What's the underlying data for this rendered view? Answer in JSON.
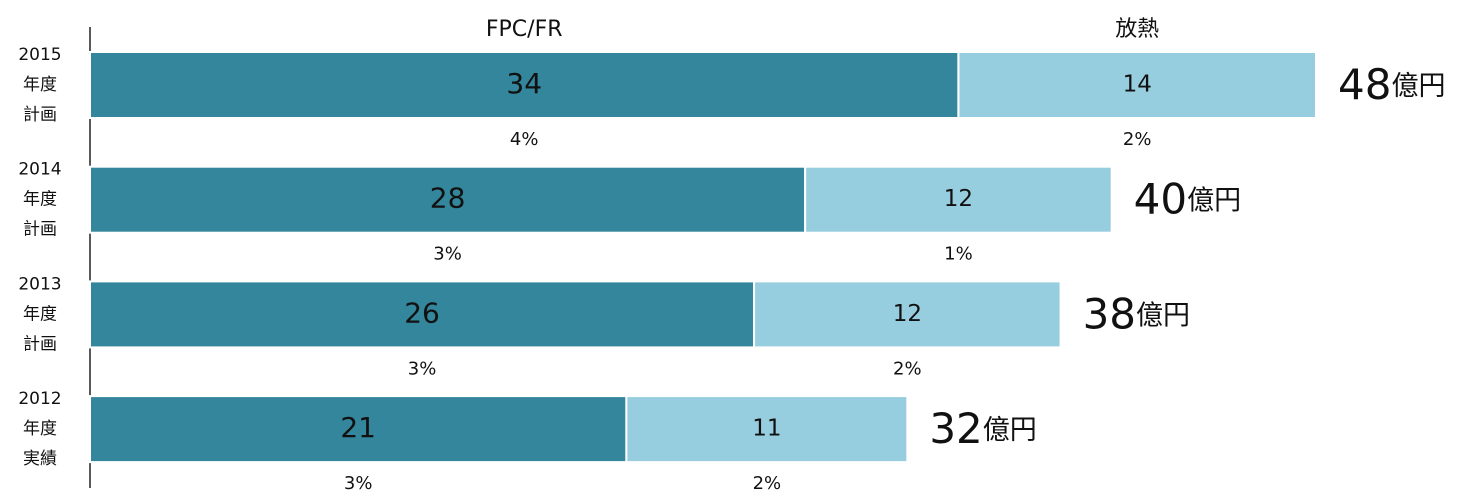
{
  "chart_data": {
    "type": "stacked-barh",
    "categories": [
      [
        "2015",
        "年度",
        "計画"
      ],
      [
        "2014",
        "年度",
        "計画"
      ],
      [
        "2013",
        "年度",
        "計画"
      ],
      [
        "2012",
        "年度",
        "実績"
      ]
    ],
    "series": [
      {
        "name": "FPC/FR",
        "color": "#33869b",
        "values": [
          34,
          28,
          26,
          21
        ],
        "share_labels": [
          "4%",
          "3%",
          "3%",
          "3%"
        ]
      },
      {
        "name": "放熱",
        "color": "#96cddf",
        "values": [
          14,
          12,
          12,
          11
        ],
        "share_labels": [
          "2%",
          "1%",
          "2%",
          "2%"
        ]
      }
    ],
    "totals": [
      48,
      40,
      38,
      32
    ],
    "total_unit": "億円"
  }
}
